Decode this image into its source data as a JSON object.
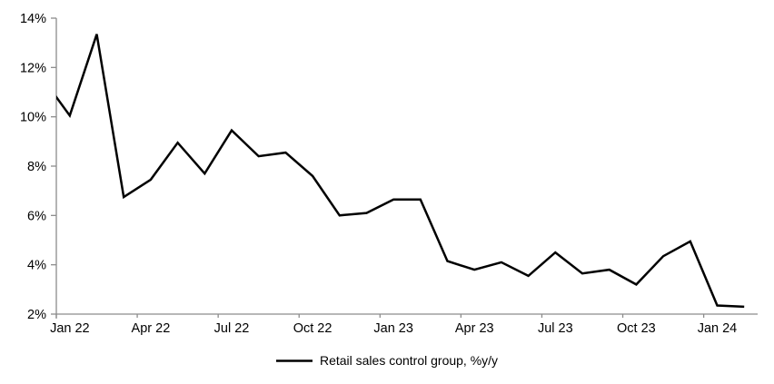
{
  "chart_data": {
    "type": "line",
    "title": "",
    "xlabel": "",
    "ylabel": "",
    "ylim": [
      2,
      14
    ],
    "y_step": 2,
    "grid": false,
    "legend_position": "bottom-center",
    "background": "#ffffff",
    "axis_color": "#8c8c8c",
    "text_color": "#000000",
    "y_tick_labels": [
      "2%",
      "4%",
      "6%",
      "8%",
      "10%",
      "12%",
      "14%"
    ],
    "x_tick_labels": [
      "Jan 22",
      "Apr 22",
      "Jul 22",
      "Oct 22",
      "Jan 23",
      "Apr 23",
      "Jul 23",
      "Oct 23",
      "Jan 24"
    ],
    "x_label_interval_months": 3,
    "categories": [
      "Jan 22",
      "Feb 22",
      "Mar 22",
      "Apr 22",
      "May 22",
      "Jun 22",
      "Jul 22",
      "Aug 22",
      "Sep 22",
      "Oct 22",
      "Nov 22",
      "Dec 22",
      "Jan 23",
      "Feb 23",
      "Mar 23",
      "Apr 23",
      "May 23",
      "Jun 23",
      "Jul 23",
      "Aug 23",
      "Sep 23",
      "Oct 23",
      "Nov 23",
      "Dec 23",
      "Jan 24",
      "Feb 24"
    ],
    "series": [
      {
        "name": "Retail sales control group, %y/y",
        "color": "#000000",
        "stroke_width": 2.5,
        "values": [
          10.05,
          13.35,
          6.75,
          7.45,
          8.95,
          7.7,
          9.45,
          8.4,
          8.55,
          7.6,
          6.0,
          6.1,
          6.65,
          6.65,
          4.15,
          3.8,
          4.1,
          3.55,
          4.5,
          3.65,
          3.8,
          3.2,
          4.35,
          4.95,
          2.35,
          2.3
        ],
        "clipped_lead_in_value": 11.55
      }
    ]
  }
}
